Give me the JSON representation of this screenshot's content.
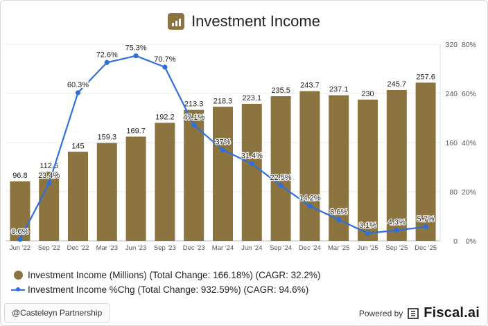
{
  "header": {
    "title": "Investment Income",
    "icon": "bar-chart-icon"
  },
  "chart_data": {
    "type": "bar",
    "categories": [
      "Jun '22",
      "Sep '22",
      "Dec '22",
      "Mar '23",
      "Jun '23",
      "Sep '23",
      "Dec '23",
      "Mar '24",
      "Jun '24",
      "Sep '24",
      "Dec '24",
      "Mar '25",
      "Jun '25",
      "Sep '25",
      "Dec '25"
    ],
    "series": [
      {
        "name": "Investment Income (Millions) (Total Change: 166.18%) (CAGR: 32.2%)",
        "type": "bar",
        "axis": "left",
        "color": "#8b7440",
        "values": [
          96.8,
          112.6,
          145,
          159.3,
          169.7,
          192.2,
          213.3,
          218.3,
          223.1,
          235.5,
          243.7,
          237.1,
          230,
          245.7,
          257.6
        ],
        "labels": [
          "96.8",
          "112.6",
          "145",
          "159.3",
          "169.7",
          "192.2",
          "213.3",
          "218.3",
          "223.1",
          "235.5",
          "243.7",
          "237.1",
          "230",
          "245.7",
          "257.6"
        ]
      },
      {
        "name": "Investment Income %Chg (Total Change: 932.59%) (CAGR: 94.6%)",
        "type": "line",
        "axis": "right",
        "color": "#2f6fdb",
        "values": [
          0.6,
          23.4,
          60.3,
          72.6,
          75.3,
          70.7,
          47.1,
          37,
          31.4,
          22.5,
          14.2,
          8.6,
          3.1,
          4.3,
          5.7
        ],
        "labels": [
          "0.6%",
          "23.4%",
          "60.3%",
          "72.6%",
          "75.3%",
          "70.7%",
          "47.1%",
          "37%",
          "31.4%",
          "22.5%",
          "14.2%",
          "8.6%",
          "3.1%",
          "4.3%",
          "5.7%"
        ]
      }
    ],
    "y_left": {
      "ylim": [
        0,
        320
      ],
      "ticks": [
        "0",
        "80",
        "160",
        "240",
        "320"
      ]
    },
    "y_right": {
      "ylim": [
        0,
        80
      ],
      "unit": "%",
      "ticks": [
        "0%",
        "20%",
        "40%",
        "60%",
        "80%"
      ]
    },
    "grid": true,
    "legend_position": "bottom-left"
  },
  "footer": {
    "attribution": "@Casteleyn Partnership",
    "powered_by": "Powered by",
    "brand": "Fiscal.ai"
  }
}
